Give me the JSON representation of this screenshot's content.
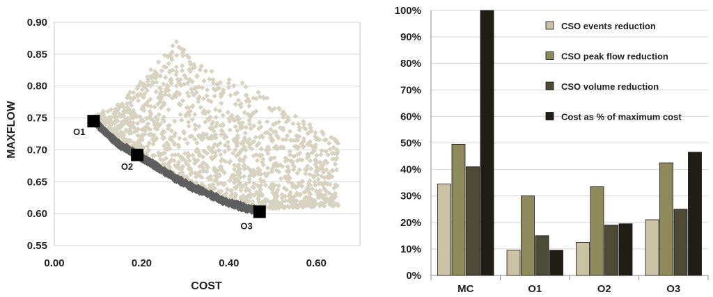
{
  "chart_data": [
    {
      "type": "scatter",
      "title": "",
      "xlabel": "COST",
      "ylabel": "MAXFLOW",
      "xlim": [
        0.0,
        0.7
      ],
      "ylim": [
        0.55,
        0.9
      ],
      "xticks": [
        "0.00",
        "0.20",
        "0.40",
        "0.60"
      ],
      "yticks": [
        "0.55",
        "0.60",
        "0.65",
        "0.70",
        "0.75",
        "0.80",
        "0.85",
        "0.90"
      ],
      "grid": "horizontal",
      "colors": {
        "cloud": "#d8d3c1",
        "front": "#5f5f5f",
        "highlight": "#000000"
      },
      "series": [
        {
          "role": "solution-cloud",
          "point_count": 1500,
          "x_range": [
            0.09,
            0.65
          ],
          "y_range": [
            0.6,
            0.875
          ]
        },
        {
          "role": "pareto-front",
          "x": [
            0.09,
            0.12,
            0.15,
            0.19,
            0.23,
            0.27,
            0.31,
            0.35,
            0.39,
            0.43,
            0.47
          ],
          "y": [
            0.745,
            0.725,
            0.707,
            0.692,
            0.675,
            0.658,
            0.643,
            0.631,
            0.619,
            0.61,
            0.603
          ]
        }
      ],
      "highlights": [
        {
          "label": "O1",
          "x": 0.09,
          "y": 0.745
        },
        {
          "label": "O2",
          "x": 0.19,
          "y": 0.692
        },
        {
          "label": "O3",
          "x": 0.47,
          "y": 0.603
        }
      ]
    },
    {
      "type": "bar",
      "title": "",
      "categories": [
        "MC",
        "O1",
        "O2",
        "O3"
      ],
      "ylim": [
        0,
        100
      ],
      "yticks": [
        "0%",
        "10%",
        "20%",
        "30%",
        "40%",
        "50%",
        "60%",
        "70%",
        "80%",
        "90%",
        "100%"
      ],
      "grid": "horizontal",
      "legend_position": "top-right",
      "series": [
        {
          "name": "CSO events reduction",
          "color": "#cbc2a5",
          "values": [
            34.5,
            9.5,
            12.5,
            21
          ]
        },
        {
          "name": "CSO peak flow reduction",
          "color": "#8f8a5c",
          "values": [
            49.5,
            30,
            33.5,
            42.5
          ]
        },
        {
          "name": "CSO volume reduction",
          "color": "#4d4a36",
          "values": [
            41,
            15,
            19,
            25
          ]
        },
        {
          "name": "Cost as % of maximum cost",
          "color": "#201e14",
          "values": [
            100,
            9.5,
            19.5,
            46.5
          ]
        }
      ]
    }
  ]
}
